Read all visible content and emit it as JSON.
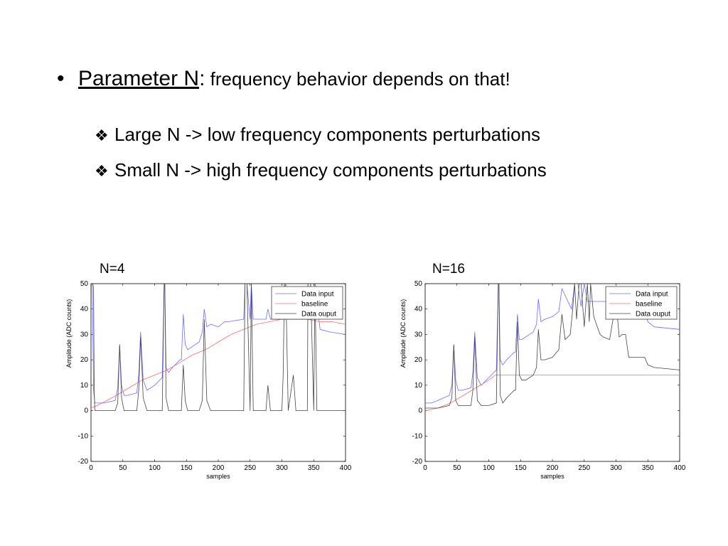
{
  "slide": {
    "bullet": {
      "marker": "•",
      "term": "Parameter N",
      "colon": ":",
      "text": " frequency behavior depends on that!"
    },
    "sub_bullets": [
      {
        "marker": "❖",
        "text": "Large N -> low frequency components perturbations"
      },
      {
        "marker": "❖",
        "text": "Small N -> high frequency components perturbations"
      }
    ]
  },
  "chart_data": [
    {
      "type": "line",
      "title": "N=4",
      "xlabel": "samples",
      "ylabel": "Amplitude (ADC counts)",
      "xlim": [
        0,
        400
      ],
      "ylim": [
        -20,
        50
      ],
      "xticks": [
        0,
        50,
        100,
        150,
        200,
        250,
        300,
        350,
        400
      ],
      "yticks": [
        -20,
        -10,
        0,
        10,
        20,
        30,
        40,
        50
      ],
      "legend_position": "top-right",
      "series": [
        {
          "name": "Data input",
          "color": "#6b6bff",
          "x": [
            0,
            2,
            4,
            6,
            8,
            10,
            20,
            38,
            42,
            45,
            48,
            52,
            58,
            72,
            75,
            78,
            82,
            88,
            100,
            112,
            115,
            116,
            118,
            122,
            128,
            140,
            142,
            145,
            148,
            152,
            158,
            170,
            175,
            178,
            182,
            188,
            200,
            210,
            215,
            240,
            242,
            245,
            250,
            252,
            255,
            265,
            275,
            278,
            282,
            300,
            304,
            306,
            310,
            340,
            341,
            345,
            350,
            352,
            360,
            375,
            400
          ],
          "y": [
            50,
            50,
            8,
            3,
            3,
            3,
            3,
            4,
            9,
            26,
            10,
            6,
            6,
            7,
            14,
            31,
            12,
            8,
            10,
            13,
            50,
            50,
            17,
            15,
            17,
            20,
            20,
            38,
            26,
            24,
            25,
            27,
            31,
            40,
            33,
            34,
            33,
            35,
            35,
            36,
            50,
            50,
            36,
            50,
            36,
            36,
            36,
            40,
            36,
            36,
            50,
            50,
            36,
            36,
            50,
            50,
            36,
            50,
            32,
            31,
            30
          ]
        },
        {
          "name": "baseline",
          "color": "#ff6b6b",
          "x": [
            0,
            10,
            40,
            60,
            80,
            100,
            120,
            140,
            160,
            180,
            200,
            220,
            240,
            260,
            280,
            300,
            320,
            340,
            360,
            380,
            400
          ],
          "y": [
            1,
            2,
            6,
            9,
            12,
            14,
            16,
            19,
            22,
            24,
            27,
            30,
            32,
            34,
            35,
            36,
            36,
            36,
            35,
            35,
            34
          ]
        },
        {
          "name": "Data ouput",
          "color": "#444444",
          "x": [
            0,
            1,
            2,
            3,
            4,
            5,
            6,
            8,
            10,
            20,
            38,
            42,
            45,
            48,
            52,
            58,
            72,
            75,
            78,
            82,
            88,
            100,
            112,
            115,
            116,
            118,
            122,
            128,
            140,
            142,
            145,
            148,
            152,
            158,
            170,
            175,
            178,
            182,
            188,
            200,
            215,
            220,
            228,
            235,
            240,
            242,
            245,
            250,
            252,
            255,
            260,
            265,
            272,
            275,
            278,
            282,
            290,
            295,
            300,
            302,
            304,
            306,
            310,
            318,
            322,
            340,
            341,
            345,
            350,
            352,
            355,
            360,
            400
          ],
          "y": [
            50,
            50,
            50,
            50,
            48,
            8,
            0,
            0,
            0,
            0,
            0,
            3,
            26,
            5,
            0,
            0,
            0,
            8,
            29,
            5,
            0,
            0,
            0,
            50,
            50,
            5,
            0,
            0,
            0,
            0,
            18,
            4,
            0,
            0,
            0,
            4,
            36,
            4,
            0,
            0,
            0,
            0,
            0,
            0,
            0,
            50,
            50,
            0,
            50,
            0,
            0,
            0,
            0,
            0,
            10,
            0,
            0,
            0,
            0,
            14,
            50,
            50,
            0,
            14,
            0,
            0,
            50,
            50,
            0,
            50,
            0,
            0,
            0
          ]
        }
      ]
    },
    {
      "type": "line",
      "title": "N=16",
      "xlabel": "samples",
      "ylabel": "Amplitude (ADC counts)",
      "xlim": [
        0,
        400
      ],
      "ylim": [
        -20,
        50
      ],
      "xticks": [
        0,
        50,
        100,
        150,
        200,
        250,
        300,
        350,
        400
      ],
      "yticks": [
        -20,
        -10,
        0,
        10,
        20,
        30,
        40,
        50
      ],
      "legend_position": "top-right",
      "series": [
        {
          "name": "Data input",
          "color": "#6b6bff",
          "x": [
            0,
            2,
            4,
            6,
            10,
            20,
            38,
            42,
            45,
            48,
            52,
            58,
            72,
            75,
            78,
            82,
            88,
            100,
            112,
            115,
            116,
            118,
            122,
            128,
            140,
            142,
            145,
            148,
            152,
            158,
            170,
            175,
            178,
            182,
            188,
            200,
            210,
            215,
            230,
            235,
            240,
            245,
            250,
            255,
            260,
            265,
            280,
            290,
            300,
            330,
            335,
            340,
            350,
            360,
            400
          ],
          "y": [
            3,
            3,
            3,
            3,
            3,
            4,
            6,
            10,
            26,
            12,
            8,
            8,
            9,
            15,
            31,
            13,
            10,
            13,
            16,
            50,
            50,
            20,
            18,
            20,
            23,
            23,
            38,
            28,
            28,
            29,
            31,
            34,
            44,
            35,
            36,
            37,
            39,
            48,
            40,
            50,
            50,
            41,
            50,
            43,
            43,
            43,
            43,
            43,
            43,
            43,
            43,
            43,
            35,
            33,
            32
          ]
        },
        {
          "name": "baseline",
          "color": "#ff6b6b",
          "x": [
            0,
            20,
            40,
            60,
            80,
            100,
            110,
            115,
            120,
            200,
            400
          ],
          "y": [
            0,
            1,
            3,
            6,
            9,
            12,
            14,
            14,
            14,
            14,
            14
          ]
        },
        {
          "name": "Data ouput",
          "color": "#444444",
          "x": [
            0,
            1,
            2,
            3,
            5,
            10,
            20,
            38,
            42,
            45,
            48,
            52,
            58,
            72,
            75,
            78,
            82,
            88,
            100,
            112,
            115,
            116,
            118,
            122,
            128,
            140,
            142,
            145,
            148,
            152,
            158,
            170,
            175,
            178,
            182,
            188,
            200,
            210,
            215,
            220,
            228,
            232,
            235,
            238,
            242,
            245,
            250,
            255,
            258,
            260,
            265,
            272,
            275,
            280,
            290,
            300,
            305,
            310,
            315,
            320,
            325,
            330,
            335,
            340,
            345,
            350,
            360,
            400
          ],
          "y": [
            1,
            1,
            1,
            1,
            1,
            1,
            1,
            2,
            5,
            26,
            4,
            2,
            2,
            2,
            8,
            29,
            4,
            2,
            2,
            3,
            50,
            50,
            6,
            3,
            5,
            8,
            8,
            35,
            14,
            12,
            12,
            14,
            17,
            32,
            20,
            20,
            21,
            24,
            38,
            28,
            30,
            40,
            50,
            36,
            50,
            50,
            33,
            50,
            35,
            50,
            37,
            32,
            30,
            29,
            28,
            43,
            29,
            30,
            30,
            21,
            21,
            21,
            21,
            21,
            21,
            18,
            17,
            16
          ]
        }
      ]
    }
  ]
}
